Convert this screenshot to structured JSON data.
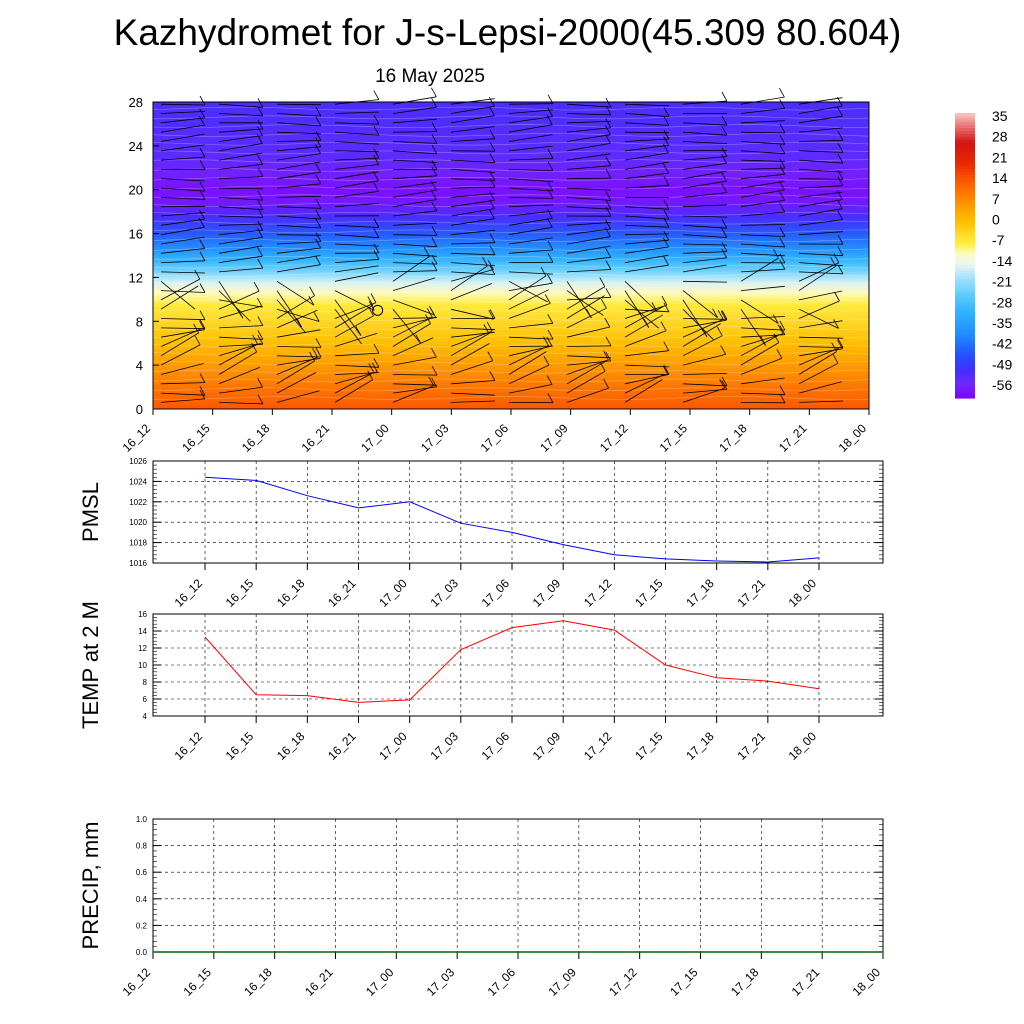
{
  "header": {
    "title": "Kazhydromet for J-s-Lepsi-2000(45.309 80.604)",
    "subtitle": "16 May 2025"
  },
  "chart_data": [
    {
      "type": "heatmap",
      "name": "temperature-wind-cross-section",
      "title": "",
      "x_ticks": [
        "16_12",
        "16_15",
        "16_18",
        "16_21",
        "17_00",
        "17_03",
        "17_06",
        "17_09",
        "17_12",
        "17_15",
        "17_18",
        "17_21",
        "18_00"
      ],
      "y_ticks": [
        "0",
        "4",
        "8",
        "12",
        "16",
        "20",
        "24",
        "28"
      ],
      "ylim": [
        0,
        28
      ],
      "colorbar_labels": [
        "35",
        "28",
        "21",
        "14",
        "7",
        "0",
        "-7",
        "-14",
        "-21",
        "-28",
        "-35",
        "-42",
        "-49",
        "-56"
      ],
      "colorbar_range": [
        -60,
        38
      ],
      "temperature_profile": [
        {
          "level": 0,
          "value": 15
        },
        {
          "level": 2,
          "value": 11
        },
        {
          "level": 4,
          "value": 6
        },
        {
          "level": 6,
          "value": 1
        },
        {
          "level": 8,
          "value": -3
        },
        {
          "level": 9.5,
          "value": -6
        },
        {
          "level": 10.6,
          "value": -10
        },
        {
          "level": 11.5,
          "value": -15
        },
        {
          "level": 12.5,
          "value": -22
        },
        {
          "level": 13.5,
          "value": -29
        },
        {
          "level": 14.5,
          "value": -36
        },
        {
          "level": 16,
          "value": -44
        },
        {
          "level": 17.5,
          "value": -51
        },
        {
          "level": 19,
          "value": -57
        },
        {
          "level": 20,
          "value": -58
        },
        {
          "level": 21.5,
          "value": -56
        },
        {
          "level": 23,
          "value": -53
        },
        {
          "level": 28,
          "value": -51
        }
      ],
      "wind_barbs": "present",
      "calm_marker": {
        "x": "17_00",
        "level": 9
      }
    },
    {
      "type": "line",
      "name": "pmsl",
      "ylabel": "PMSL",
      "x": [
        "16_12",
        "16_15",
        "16_18",
        "16_21",
        "17_00",
        "17_03",
        "17_06",
        "17_09",
        "17_12",
        "17_15",
        "17_18",
        "17_21",
        "18_00"
      ],
      "y_ticks": [
        "1016",
        "1018",
        "1020",
        "1022",
        "1024",
        "1026"
      ],
      "ylim": [
        1016,
        1026
      ],
      "series": [
        {
          "values": [
            1024.4,
            1024.1,
            1022.6,
            1021.4,
            1022.0,
            1019.9,
            1019.0,
            1017.8,
            1016.8,
            1016.4,
            1016.2,
            1016.1,
            1016.5
          ]
        }
      ],
      "color": "#0000ff"
    },
    {
      "type": "line",
      "name": "temp2m",
      "ylabel": "TEMP at 2 M",
      "x": [
        "16_12",
        "16_15",
        "16_18",
        "16_21",
        "17_00",
        "17_03",
        "17_06",
        "17_09",
        "17_12",
        "17_15",
        "17_18",
        "17_21",
        "18_00"
      ],
      "y_ticks": [
        "4",
        "6",
        "8",
        "10",
        "12",
        "14",
        "16"
      ],
      "ylim": [
        4,
        16
      ],
      "series": [
        {
          "values": [
            13.3,
            6.5,
            6.4,
            5.6,
            5.9,
            11.8,
            14.4,
            15.2,
            14.1,
            10.0,
            8.5,
            8.1,
            7.2
          ]
        }
      ],
      "color": "#ff0000"
    },
    {
      "type": "line",
      "name": "precip",
      "ylabel": "PRECIP, mm",
      "x": [
        "16_12",
        "16_15",
        "16_18",
        "16_21",
        "17_00",
        "17_03",
        "17_06",
        "17_09",
        "17_12",
        "17_15",
        "17_18",
        "17_21",
        "18_00"
      ],
      "y_ticks": [
        "0.0",
        "0.2",
        "0.4",
        "0.6",
        "0.8",
        "1.0"
      ],
      "ylim": [
        0,
        1
      ],
      "series": [
        {
          "values": [
            0,
            0,
            0,
            0,
            0,
            0,
            0,
            0,
            0,
            0,
            0,
            0,
            0
          ]
        }
      ],
      "color": "#006400"
    }
  ]
}
